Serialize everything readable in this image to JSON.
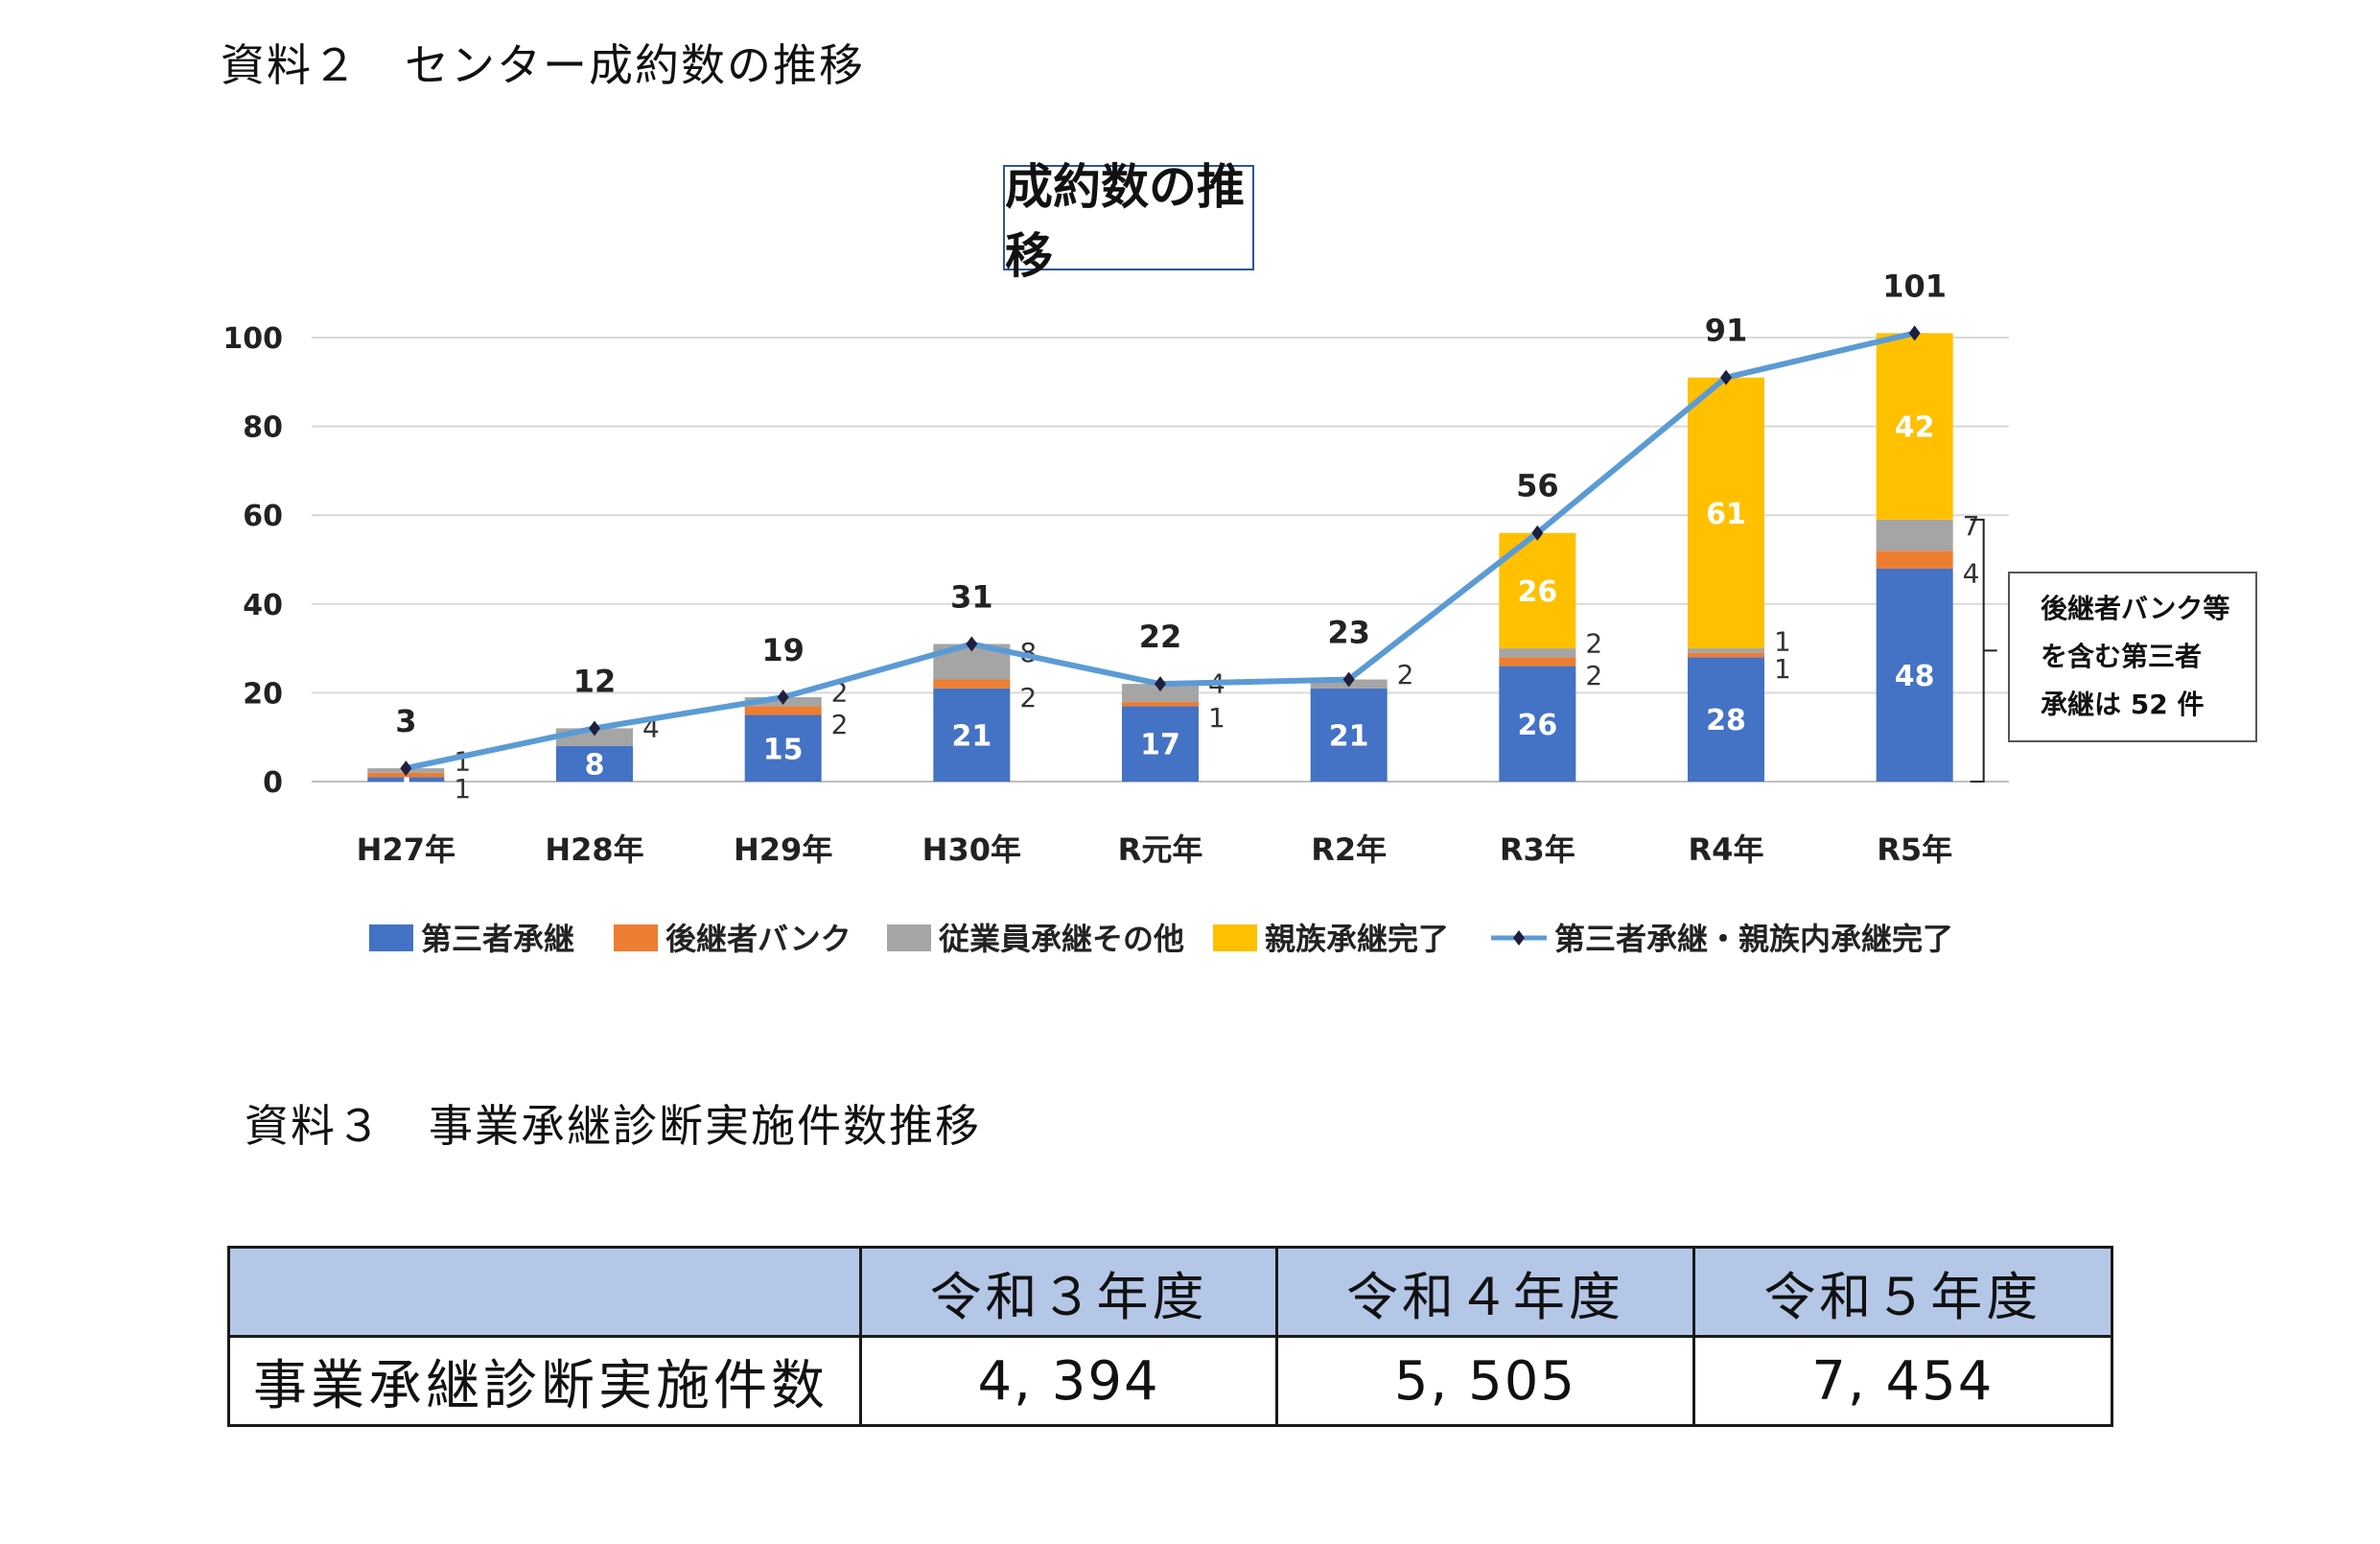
{
  "headings": {
    "doc2": "資料２　センター成約数の推移",
    "doc3": "資料３　事業承継診断実施件数推移"
  },
  "chart_data": {
    "type": "bar",
    "stacked": true,
    "title": "成約数の推移",
    "categories": [
      "H27年",
      "H28年",
      "H29年",
      "H30年",
      "R元年",
      "R2年",
      "R3年",
      "R4年",
      "R5年"
    ],
    "ylim": [
      0,
      100
    ],
    "yticks": [
      0,
      20,
      40,
      60,
      80,
      100
    ],
    "grid": true,
    "legend_position": "bottom",
    "series": [
      {
        "name": "第三者承継",
        "color": "#4472c4",
        "values": [
          1,
          8,
          15,
          21,
          17,
          21,
          26,
          28,
          48
        ],
        "labels": [
          "1",
          "8",
          "15",
          "21",
          "17",
          "21",
          "26",
          "28",
          "48"
        ],
        "label_color": "#ffffff"
      },
      {
        "name": "後継者バンク",
        "color": "#ed7d31",
        "values": [
          1,
          0,
          2,
          2,
          1,
          0,
          2,
          1,
          4
        ],
        "labels": [
          "1",
          "",
          "2",
          "2",
          "1",
          "",
          "2",
          "1",
          "4"
        ],
        "label_color": "#333333"
      },
      {
        "name": "従業員承継その他",
        "color": "#a5a5a5",
        "values": [
          1,
          4,
          2,
          8,
          4,
          2,
          2,
          1,
          7
        ],
        "labels": [
          "1",
          "4",
          "2",
          "8",
          "4",
          "2",
          "2",
          "1",
          "7"
        ],
        "label_color": "#333333"
      },
      {
        "name": "親族承継完了",
        "color": "#ffc000",
        "values": [
          0,
          0,
          0,
          0,
          0,
          0,
          26,
          61,
          42
        ],
        "labels": [
          "",
          "",
          "",
          "",
          "",
          "",
          "26",
          "61",
          "42"
        ],
        "label_color": "#ffffff"
      }
    ],
    "line_series": {
      "name": "第三者承継・親族内承継完了",
      "color": "#5b9bd5",
      "values": [
        3,
        12,
        19,
        31,
        22,
        23,
        56,
        91,
        101
      ],
      "labels": [
        "3",
        "12",
        "19",
        "31",
        "22",
        "23",
        "56",
        "91",
        "101"
      ]
    },
    "annotation": [
      "後継者バンク等",
      "を含む第三者",
      "承継は 52 件"
    ]
  },
  "table": {
    "headers": [
      "",
      "令和３年度",
      "令和４年度",
      "令和５年度"
    ],
    "row_label": "事業承継診断実施件数",
    "values": [
      "4, 394",
      "5, 505",
      "7, 454"
    ]
  }
}
